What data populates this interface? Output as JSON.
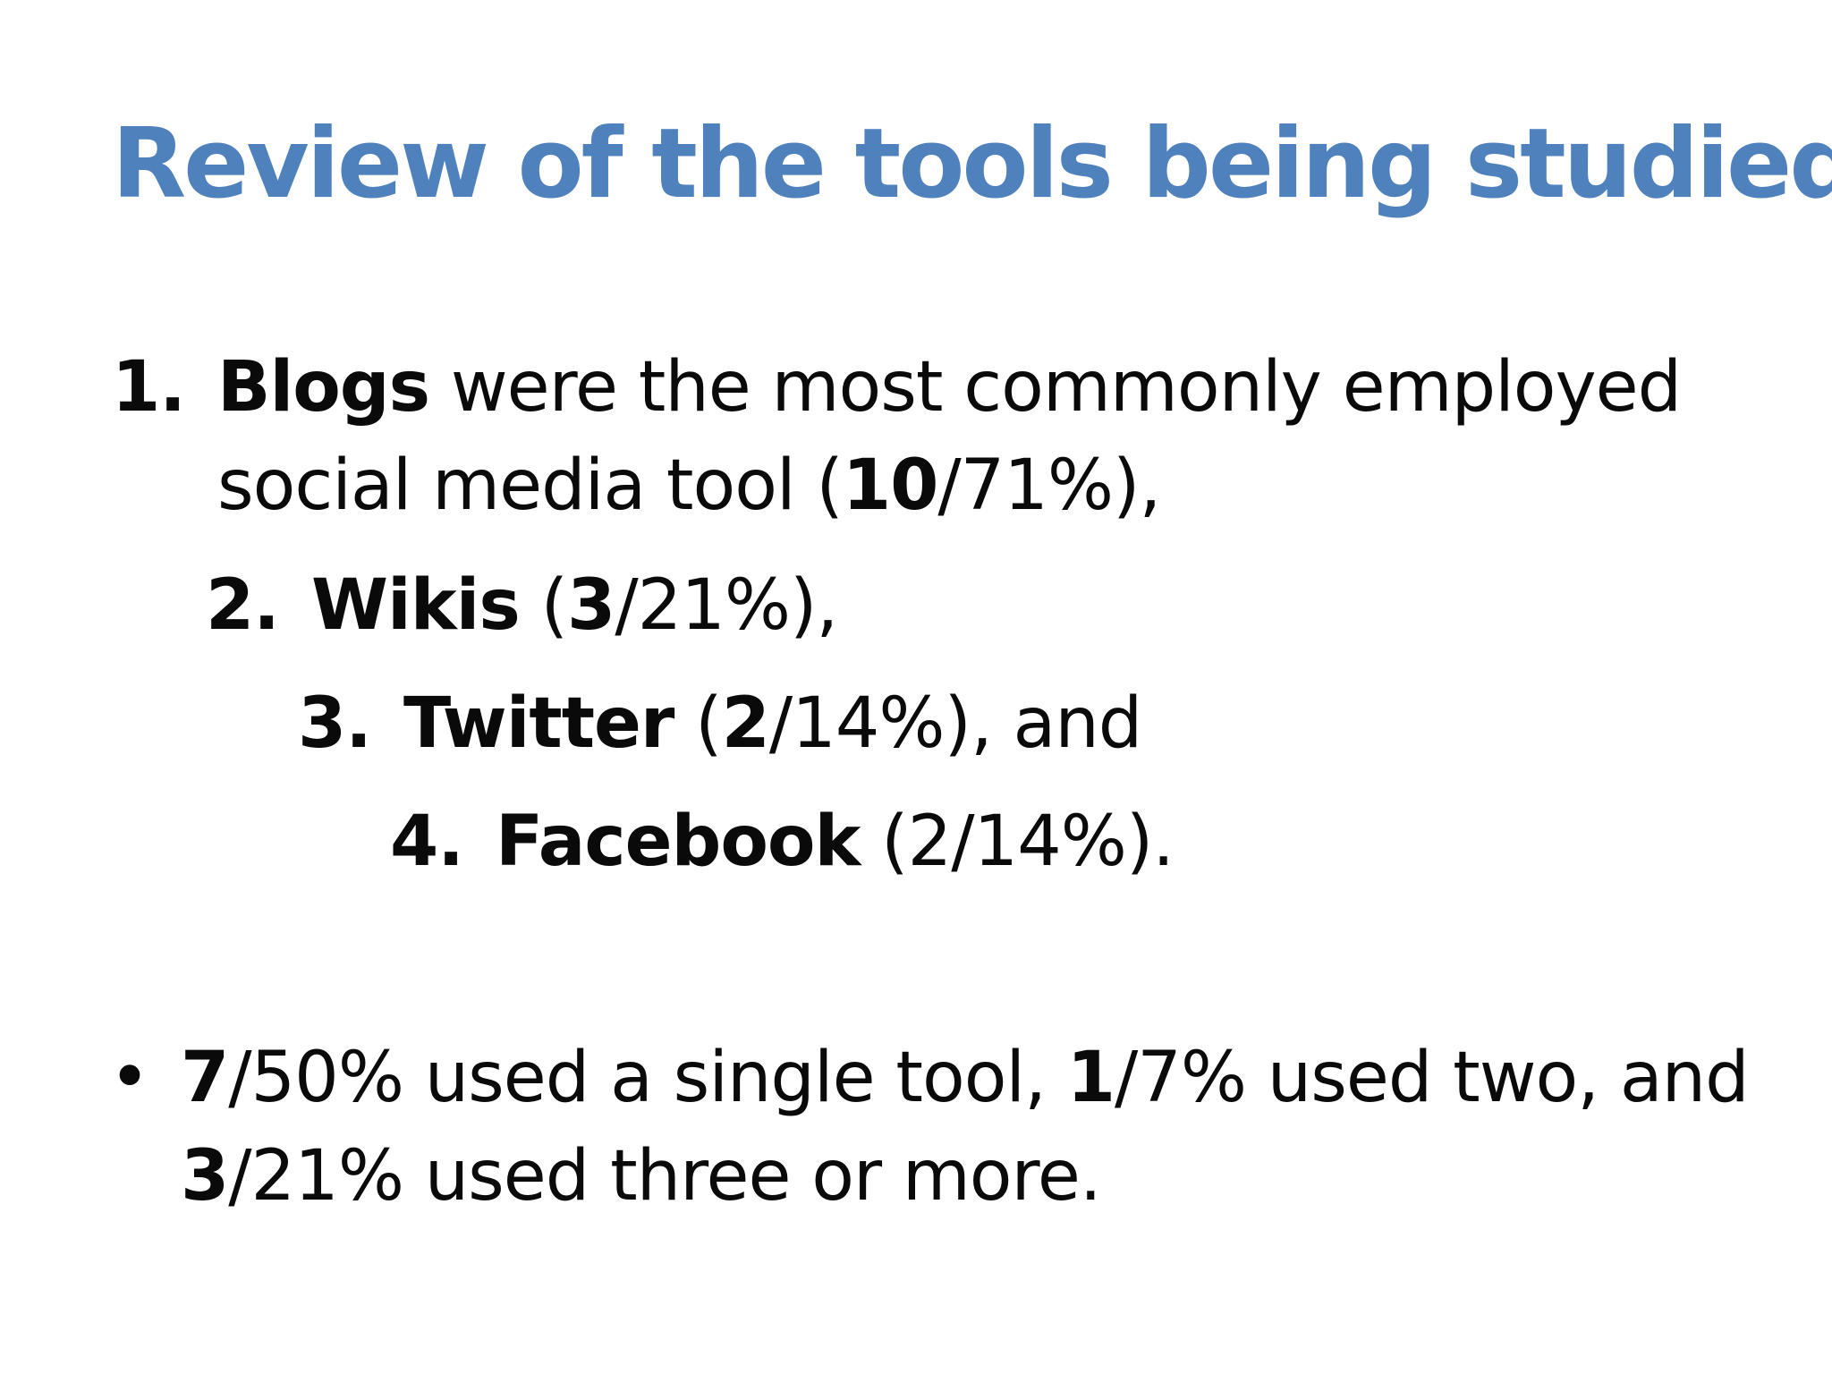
{
  "slide": {
    "title": "Review of the tools being studied",
    "list": [
      {
        "number": "1.",
        "name": "Blogs",
        "rest": " were the most commonly employed",
        "line2_pre": "social media tool (",
        "count": "10",
        "pct": "/71%),"
      },
      {
        "number": "2.",
        "name": "Wikis",
        "paren_open": " (",
        "count": "3",
        "pct": "/21%),"
      },
      {
        "number": "3.",
        "name": "Twitter",
        "paren_open": " (",
        "count": "2",
        "pct": "/14%), and"
      },
      {
        "number": "4.",
        "name": "Facebook",
        "rest": " (2/14%)."
      }
    ],
    "bullet": {
      "symbol": "•",
      "a_count": "7",
      "a_text": "/50% used a single tool, ",
      "b_count": "1",
      "b_text": "/7% used two, and",
      "c_count": "3",
      "c_text": "/21% used three or more."
    }
  }
}
